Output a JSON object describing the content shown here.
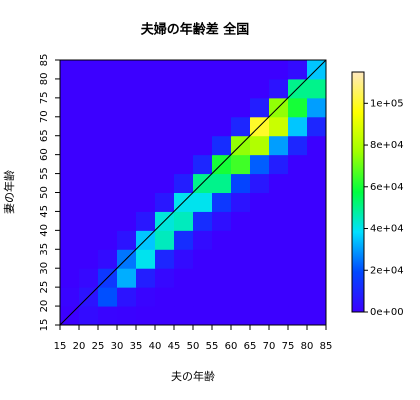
{
  "chart_data": {
    "type": "heatmap",
    "title": "夫婦の年齢差 全国",
    "x_label": "夫の年齢",
    "y_label": "妻の年齢",
    "x_bins": [
      15,
      20,
      25,
      30,
      35,
      40,
      45,
      50,
      55,
      60,
      65,
      70,
      75,
      80,
      85
    ],
    "y_bins": [
      15,
      20,
      25,
      30,
      35,
      40,
      45,
      50,
      55,
      60,
      65,
      70,
      75,
      80,
      85
    ],
    "values": [
      [
        0,
        3000,
        1000,
        500,
        0,
        0,
        0,
        0,
        0,
        0,
        0,
        0,
        0,
        0
      ],
      [
        1000,
        5000,
        20000,
        5000,
        1000,
        0,
        0,
        0,
        0,
        0,
        0,
        0,
        0,
        0
      ],
      [
        0,
        2000,
        15000,
        32000,
        8000,
        2000,
        0,
        0,
        0,
        0,
        0,
        0,
        0,
        0
      ],
      [
        0,
        0,
        3000,
        25000,
        40000,
        10000,
        3000,
        0,
        0,
        0,
        0,
        0,
        0,
        0
      ],
      [
        0,
        0,
        0,
        5000,
        35000,
        45000,
        12000,
        3000,
        0,
        0,
        0,
        0,
        0,
        0
      ],
      [
        0,
        0,
        0,
        0,
        6000,
        42000,
        45000,
        12000,
        4000,
        0,
        0,
        0,
        0,
        0
      ],
      [
        0,
        0,
        0,
        0,
        0,
        6000,
        40000,
        40000,
        15000,
        5000,
        0,
        0,
        0,
        0
      ],
      [
        0,
        0,
        0,
        0,
        0,
        0,
        8000,
        50000,
        50000,
        18000,
        6000,
        0,
        0,
        0
      ],
      [
        0,
        0,
        0,
        0,
        0,
        0,
        0,
        10000,
        60000,
        65000,
        22000,
        8000,
        0,
        0
      ],
      [
        0,
        0,
        0,
        0,
        0,
        0,
        0,
        0,
        12000,
        75000,
        80000,
        30000,
        10000,
        0
      ],
      [
        0,
        0,
        0,
        0,
        0,
        0,
        0,
        0,
        0,
        10000,
        100000,
        85000,
        35000,
        10000
      ],
      [
        0,
        0,
        0,
        0,
        0,
        0,
        0,
        0,
        0,
        0,
        8000,
        75000,
        60000,
        30000
      ],
      [
        0,
        0,
        0,
        0,
        0,
        0,
        0,
        0,
        0,
        0,
        0,
        5000,
        50000,
        50000
      ],
      [
        0,
        0,
        0,
        0,
        0,
        0,
        0,
        0,
        0,
        0,
        0,
        0,
        3000,
        35000
      ]
    ],
    "xlim": [
      15,
      85
    ],
    "ylim": [
      15,
      85
    ],
    "xticks": [
      15,
      20,
      25,
      30,
      35,
      40,
      45,
      50,
      55,
      60,
      65,
      70,
      75,
      80,
      85
    ],
    "yticks": [
      15,
      20,
      25,
      30,
      35,
      40,
      45,
      50,
      55,
      60,
      65,
      70,
      75,
      80,
      85
    ],
    "zlim": [
      0,
      115000
    ],
    "zticks": [
      {
        "value": 0,
        "label": "0e+00"
      },
      {
        "value": 20000,
        "label": "2e+04"
      },
      {
        "value": 40000,
        "label": "4e+04"
      },
      {
        "value": 60000,
        "label": "6e+04"
      },
      {
        "value": 80000,
        "label": "8e+04"
      },
      {
        "value": 100000,
        "label": "1e+05"
      }
    ],
    "colors": [
      "#3c00ff",
      "#0048ff",
      "#00e0ff",
      "#00ff40",
      "#a0ff00",
      "#ffff00",
      "#ffe8c0"
    ]
  }
}
